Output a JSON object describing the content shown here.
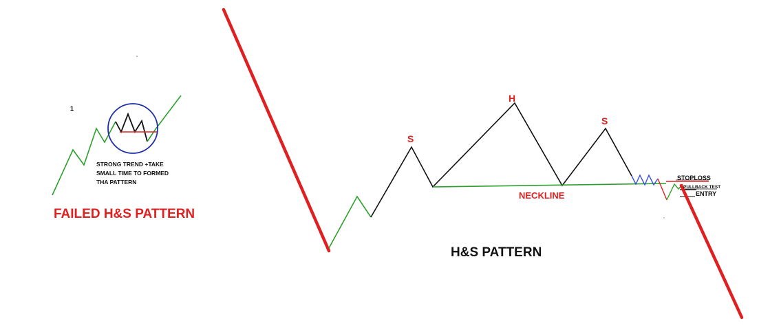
{
  "failed_pattern": {
    "number_label": "1",
    "note_lines": [
      "STRONG TREND +TAKE",
      "SMALL TIME TO FORMED",
      "THA PATTERN"
    ],
    "title": "FAILED H&S PATTERN"
  },
  "main_pattern": {
    "left_shoulder_label": "S",
    "head_label": "H",
    "right_shoulder_label": "S",
    "neckline_label": "NECKLINE",
    "title": "H&S PATTERN",
    "stoploss_label": "STOPLOSS",
    "pullback_label": "PULLBACK TEST",
    "entry_label": "ENTRY"
  },
  "colors": {
    "downtrend": "#e02020",
    "uptrend": "#2ca02c",
    "pattern": "#111111",
    "neckline": "#2ca02c",
    "label_red": "#e02020",
    "circle": "#1f2fa8",
    "consolidation": "#3a4fd8",
    "text_dark": "#111111"
  }
}
